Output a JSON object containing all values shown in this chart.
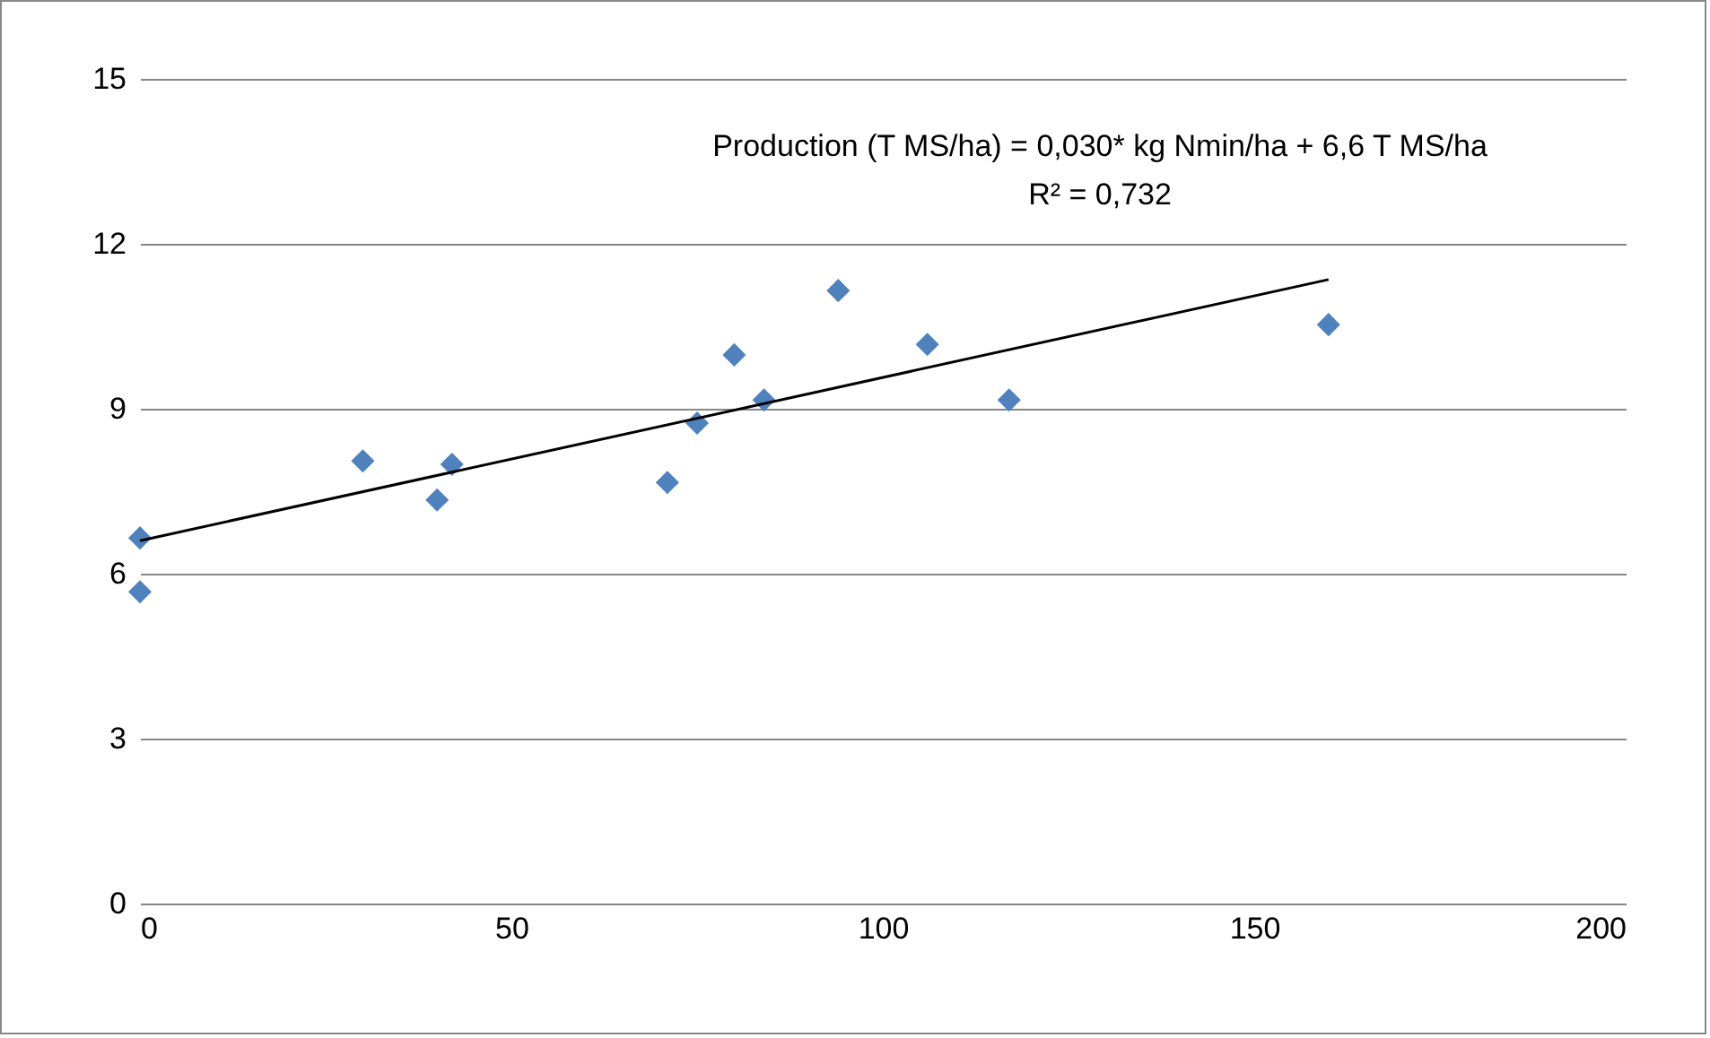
{
  "chart_data": {
    "type": "scatter",
    "xlim": [
      0,
      200
    ],
    "xticks": [
      0,
      50,
      100,
      150,
      200
    ],
    "ylim": [
      0,
      15
    ],
    "yticks": [
      0,
      3,
      6,
      9,
      12,
      15
    ],
    "grid": "y",
    "annotations": [
      "Production (T MS/ha) = 0,030* kg Nmin/ha + 6,6 T MS/ha",
      "R² = 0,732"
    ],
    "series": [
      {
        "marker": "diamond",
        "color": "#4f81bd",
        "x": [
          0,
          0,
          30,
          40,
          42,
          71,
          75,
          80,
          84,
          94,
          106,
          117,
          160
        ],
        "values": [
          6.65,
          5.67,
          8.05,
          7.34,
          7.99,
          7.66,
          8.74,
          9.98,
          9.16,
          11.15,
          10.17,
          9.16,
          10.53
        ]
      },
      {
        "type": "line",
        "color": "#000000",
        "x": [
          0,
          160
        ],
        "values": [
          6.6,
          11.35
        ]
      }
    ]
  }
}
